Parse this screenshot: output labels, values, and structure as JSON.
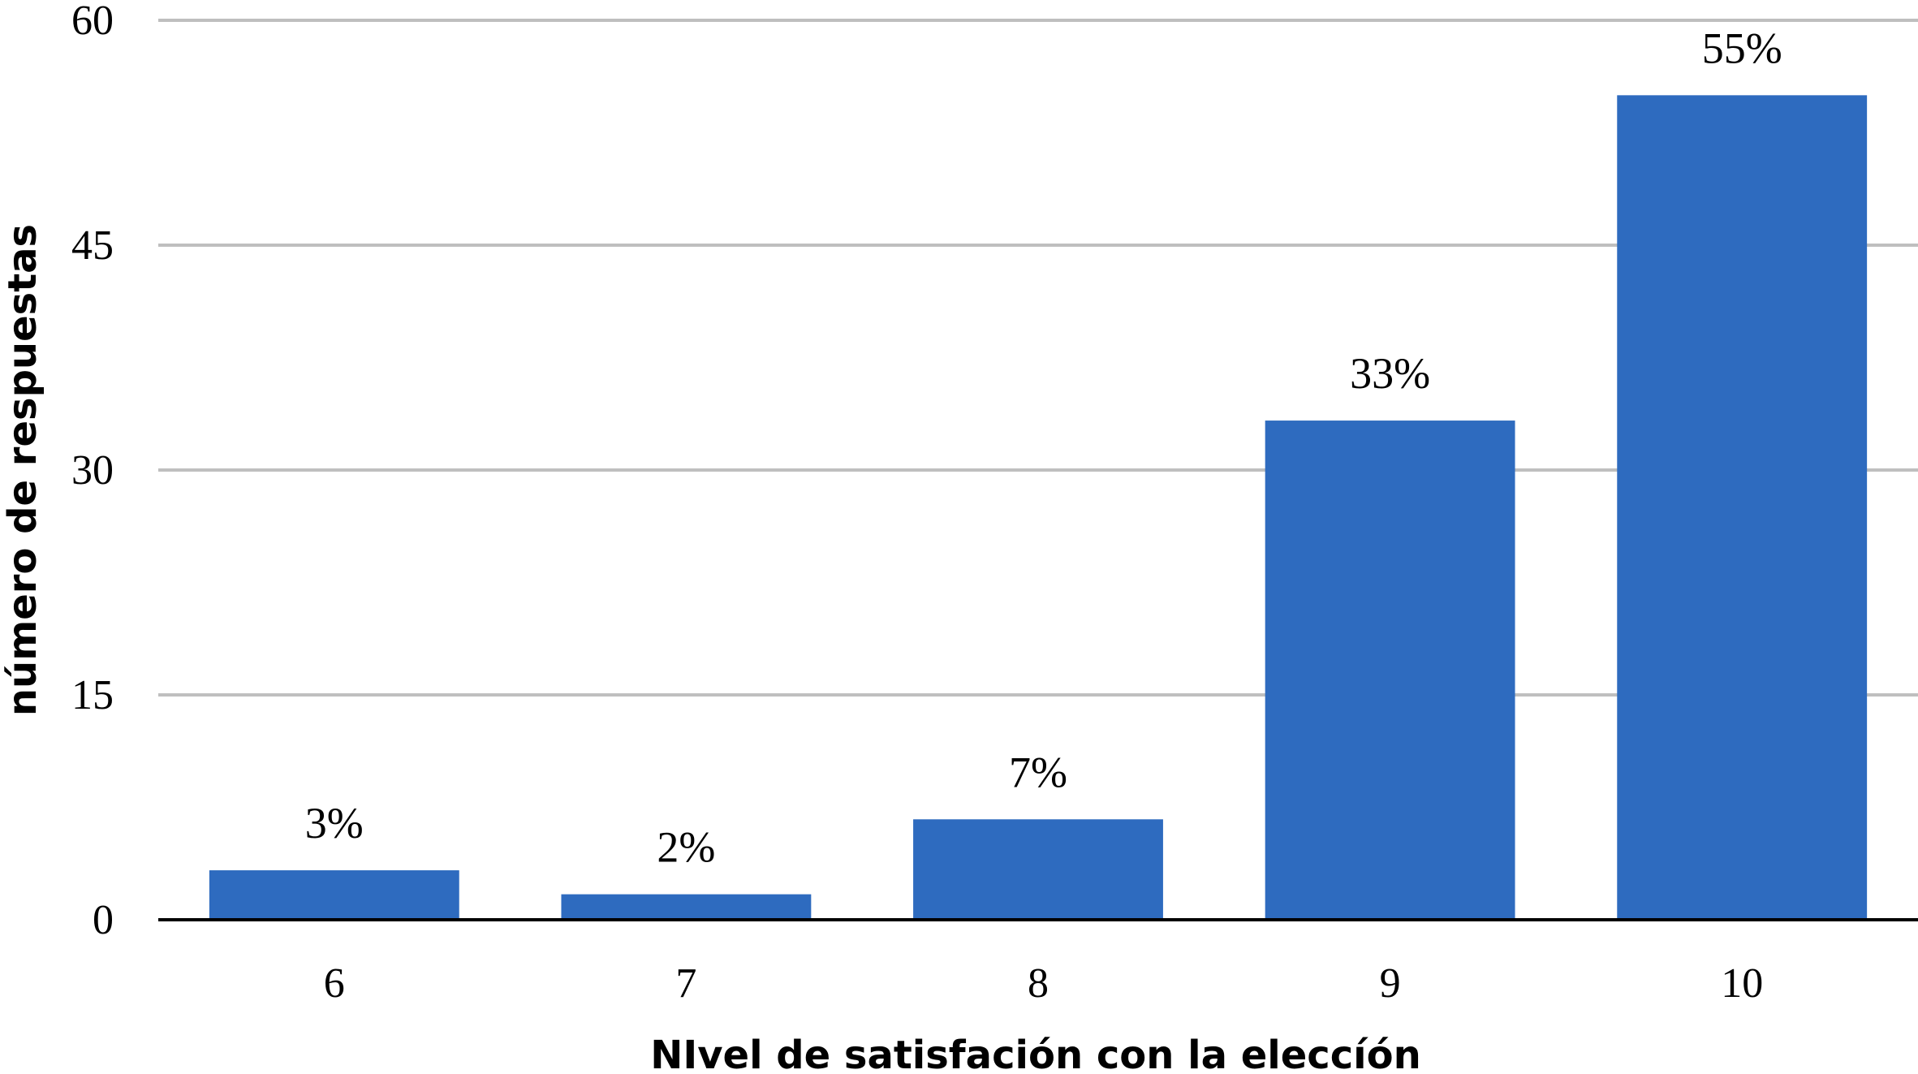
{
  "chart_data": {
    "type": "bar",
    "title": "",
    "xlabel": "NIvel de satisfación con la eleccíón",
    "ylabel": "número de respuestas",
    "categories": [
      "6",
      "7",
      "8",
      "9",
      "10"
    ],
    "values": [
      3.3,
      1.7,
      6.7,
      33.3,
      55
    ],
    "data_labels": [
      "3%",
      "2%",
      "7%",
      "33%",
      "55%"
    ],
    "ylim": [
      0,
      60
    ],
    "yticks": [
      "0",
      "15",
      "30",
      "45",
      "60"
    ],
    "grid": true,
    "legend": "none",
    "colors": {
      "bar": "#2E6BBF",
      "grid": "#BFBFBF",
      "axis": "#000000"
    }
  }
}
